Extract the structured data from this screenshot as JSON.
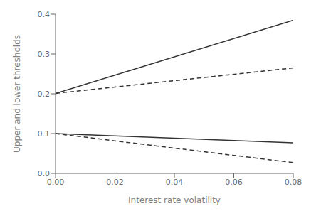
{
  "chart_data": {
    "type": "line",
    "x": [
      0.0,
      0.08
    ],
    "series": [
      {
        "color": "#333333",
        "line_style": "solid",
        "values": [
          0.201,
          0.385
        ]
      },
      {
        "color": "#333333",
        "line_style": "dashed",
        "values": [
          0.201,
          0.265
        ]
      },
      {
        "color": "#333333",
        "line_style": "solid",
        "values": [
          0.1,
          0.077
        ]
      },
      {
        "color": "#333333",
        "line_style": "dashed",
        "values": [
          0.1,
          0.027
        ]
      }
    ],
    "xlabel": "Interest rate volatility",
    "ylabel": "Upper and lower thresholds",
    "xlim": [
      0.0,
      0.08
    ],
    "ylim": [
      0.0,
      0.4
    ],
    "xticks": [
      {
        "value": 0.0,
        "label": "0.00"
      },
      0.02,
      0.04,
      0.06,
      0.08
    ],
    "yticks": [
      {
        "value": 0.0,
        "label": "0.0"
      },
      0.1,
      0.2,
      0.3,
      0.4
    ],
    "grid": false
  }
}
